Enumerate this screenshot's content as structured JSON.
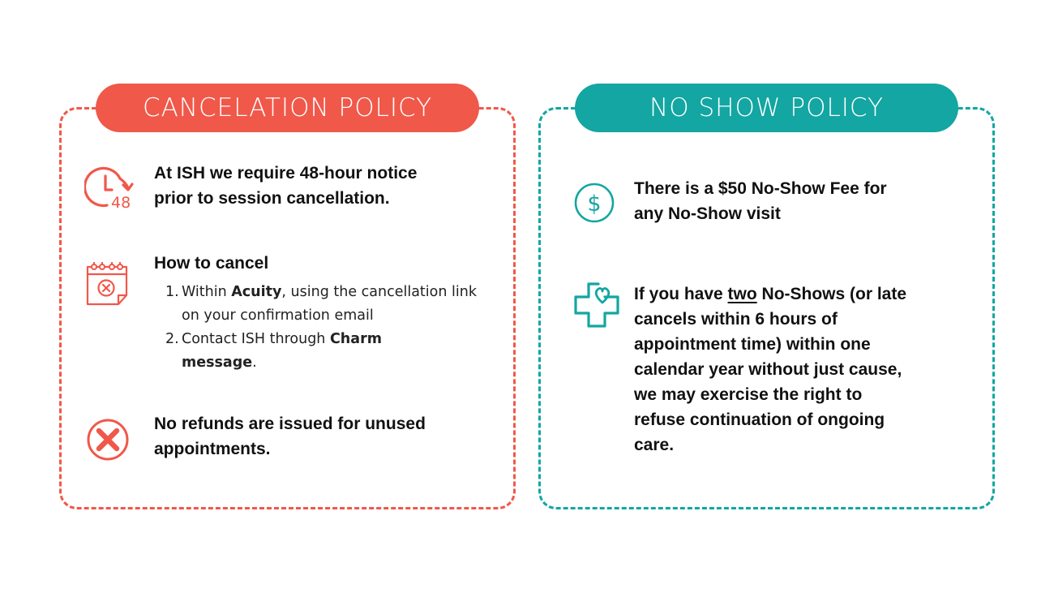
{
  "cancelation": {
    "title": "CANCELATION POLICY",
    "notice_line1": "At ISH we require 48-hour notice",
    "notice_line2": "prior to session cancellation.",
    "clock_badge": "48",
    "how_heading": "How to cancel",
    "steps": [
      {
        "num": "1.",
        "pre": "Within ",
        "bold": "Acuity",
        "post": ", using the cancellation link on your confirmation email"
      },
      {
        "num": "2.",
        "pre": "Contact ISH through ",
        "bold": "Charm message",
        "post": "."
      }
    ],
    "refund_line1": "No refunds are issued for unused",
    "refund_line2": "appointments."
  },
  "noshow": {
    "title": "NO SHOW POLICY",
    "fee_line1": "There is a $50 No-Show Fee for",
    "fee_line2": "any No-Show visit",
    "dollar_symbol": "$",
    "rule_pre": "If you have ",
    "rule_underlined": "two",
    "rule_post": " No-Shows (or late",
    "rule_lines": [
      "cancels within 6 hours of",
      "appointment time) within one",
      "calendar year without just cause,",
      "we may exercise the right to",
      "refuse continuation of ongoing",
      "care."
    ]
  },
  "colors": {
    "coral": "#f0584a",
    "teal": "#13a6a2"
  },
  "icons": [
    "clock-48-icon",
    "calendar-x-icon",
    "circle-x-icon",
    "dollar-circle-icon",
    "medical-cross-heart-icon"
  ]
}
